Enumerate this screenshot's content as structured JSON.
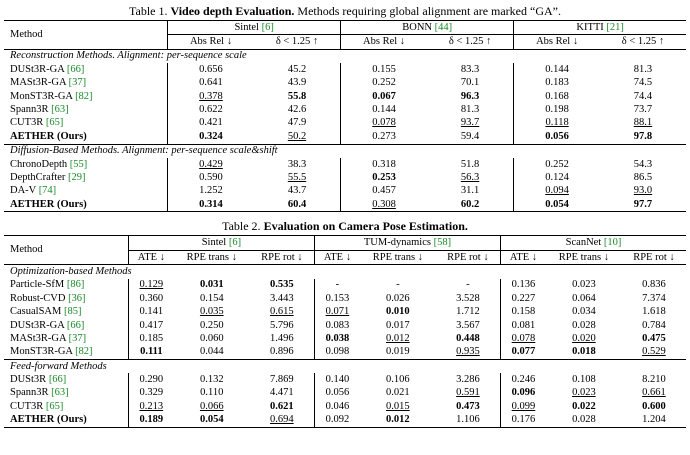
{
  "table1": {
    "caption": {
      "label": "Table 1.",
      "title": "Video depth Evaluation.",
      "text": "Methods requiring global alignment are marked “GA”."
    },
    "method_header": "Method",
    "groups": [
      "Sintel [6]",
      "BONN [44]",
      "KITTI [21]"
    ],
    "metrics": [
      "Abs Rel ↓",
      "δ < 1.25 ↑"
    ],
    "sections": [
      {
        "title": "Reconstruction Methods. Alignment: per-sequence scale",
        "rows": [
          {
            "cells": [
              "DUSt3R-GA [66]",
              "0.656",
              "45.2",
              "0.155",
              "83.3",
              "0.144",
              "81.3"
            ],
            "bold": [],
            "underline": []
          },
          {
            "cells": [
              "MASt3R-GA [37]",
              "0.641",
              "43.9",
              "0.252",
              "70.1",
              "0.183",
              "74.5"
            ],
            "bold": [],
            "underline": []
          },
          {
            "cells": [
              "MonST3R-GA [82]",
              "0.378",
              "55.8",
              "0.067",
              "96.3",
              "0.168",
              "74.4"
            ],
            "bold": [
              2,
              3,
              4
            ],
            "underline": [
              1
            ]
          },
          {
            "cells": [
              "Spann3R [63]",
              "0.622",
              "42.6",
              "0.144",
              "81.3",
              "0.198",
              "73.7"
            ],
            "bold": [],
            "underline": []
          },
          {
            "cells": [
              "CUT3R [65]",
              "0.421",
              "47.9",
              "0.078",
              "93.7",
              "0.118",
              "88.1"
            ],
            "bold": [],
            "underline": [
              3,
              4,
              5,
              6
            ]
          },
          {
            "cells": [
              "AETHER (Ours)",
              "0.324",
              "50.2",
              "0.273",
              "59.4",
              "0.056",
              "97.8"
            ],
            "bold": [
              0,
              1,
              5,
              6
            ],
            "underline": [
              2
            ]
          }
        ]
      },
      {
        "title": "Diffusion-Based Methods. Alignment: per-sequence scale&shift",
        "rows": [
          {
            "cells": [
              "ChronoDepth [55]",
              "0.429",
              "38.3",
              "0.318",
              "51.8",
              "0.252",
              "54.3"
            ],
            "bold": [],
            "underline": [
              1
            ]
          },
          {
            "cells": [
              "DepthCrafter [29]",
              "0.590",
              "55.5",
              "0.253",
              "56.3",
              "0.124",
              "86.5"
            ],
            "bold": [
              3
            ],
            "underline": [
              2,
              4
            ]
          },
          {
            "cells": [
              "DA-V [74]",
              "1.252",
              "43.7",
              "0.457",
              "31.1",
              "0.094",
              "93.0"
            ],
            "bold": [],
            "underline": [
              5,
              6
            ]
          },
          {
            "cells": [
              "AETHER (Ours)",
              "0.314",
              "60.4",
              "0.308",
              "60.2",
              "0.054",
              "97.7"
            ],
            "bold": [
              0,
              1,
              2,
              4,
              5,
              6
            ],
            "underline": [
              3
            ]
          }
        ]
      }
    ]
  },
  "table2": {
    "caption": {
      "label": "Table 2.",
      "title": "Evaluation on Camera Pose Estimation."
    },
    "method_header": "Method",
    "groups": [
      "Sintel [6]",
      "TUM-dynamics [58]",
      "ScanNet [10]"
    ],
    "metrics": [
      "ATE ↓",
      "RPE trans ↓",
      "RPE rot ↓"
    ],
    "sections": [
      {
        "title": "Optimization-based Methods",
        "rows": [
          {
            "cells": [
              "Particle-SfM [86]",
              "0.129",
              "0.031",
              "0.535",
              "-",
              "-",
              "-",
              "0.136",
              "0.023",
              "0.836"
            ],
            "bold": [
              2,
              3
            ],
            "underline": [
              1
            ]
          },
          {
            "cells": [
              "Robust-CVD [36]",
              "0.360",
              "0.154",
              "3.443",
              "0.153",
              "0.026",
              "3.528",
              "0.227",
              "0.064",
              "7.374"
            ],
            "bold": [],
            "underline": []
          },
          {
            "cells": [
              "CasualSAM [85]",
              "0.141",
              "0.035",
              "0.615",
              "0.071",
              "0.010",
              "1.712",
              "0.158",
              "0.034",
              "1.618"
            ],
            "bold": [
              5
            ],
            "underline": [
              2,
              3,
              4
            ]
          },
          {
            "cells": [
              "DUSt3R-GA [66]",
              "0.417",
              "0.250",
              "5.796",
              "0.083",
              "0.017",
              "3.567",
              "0.081",
              "0.028",
              "0.784"
            ],
            "bold": [],
            "underline": []
          },
          {
            "cells": [
              "MASt3R-GA [37]",
              "0.185",
              "0.060",
              "1.496",
              "0.038",
              "0.012",
              "0.448",
              "0.078",
              "0.020",
              "0.475"
            ],
            "bold": [
              4,
              6,
              9
            ],
            "underline": [
              5,
              7,
              8
            ]
          },
          {
            "cells": [
              "MonST3R-GA [82]",
              "0.111",
              "0.044",
              "0.896",
              "0.098",
              "0.019",
              "0.935",
              "0.077",
              "0.018",
              "0.529"
            ],
            "bold": [
              1,
              7,
              8
            ],
            "underline": [
              6,
              9
            ]
          }
        ]
      },
      {
        "title": "Feed-forward Methods",
        "rows": [
          {
            "cells": [
              "DUSt3R [66]",
              "0.290",
              "0.132",
              "7.869",
              "0.140",
              "0.106",
              "3.286",
              "0.246",
              "0.108",
              "8.210"
            ],
            "bold": [],
            "underline": []
          },
          {
            "cells": [
              "Spann3R [63]",
              "0.329",
              "0.110",
              "4.471",
              "0.056",
              "0.021",
              "0.591",
              "0.096",
              "0.023",
              "0.661"
            ],
            "bold": [
              7
            ],
            "underline": [
              6,
              8,
              9
            ]
          },
          {
            "cells": [
              "CUT3R [65]",
              "0.213",
              "0.066",
              "0.621",
              "0.046",
              "0.015",
              "0.473",
              "0.099",
              "0.022",
              "0.600"
            ],
            "bold": [
              3,
              6,
              8,
              9
            ],
            "underline": [
              1,
              2,
              5,
              7
            ]
          },
          {
            "cells": [
              "AETHER (Ours)",
              "0.189",
              "0.054",
              "0.694",
              "0.092",
              "0.012",
              "1.106",
              "0.176",
              "0.028",
              "1.204"
            ],
            "bold": [
              0,
              1,
              2,
              5
            ],
            "underline": [
              3
            ]
          }
        ]
      }
    ]
  }
}
